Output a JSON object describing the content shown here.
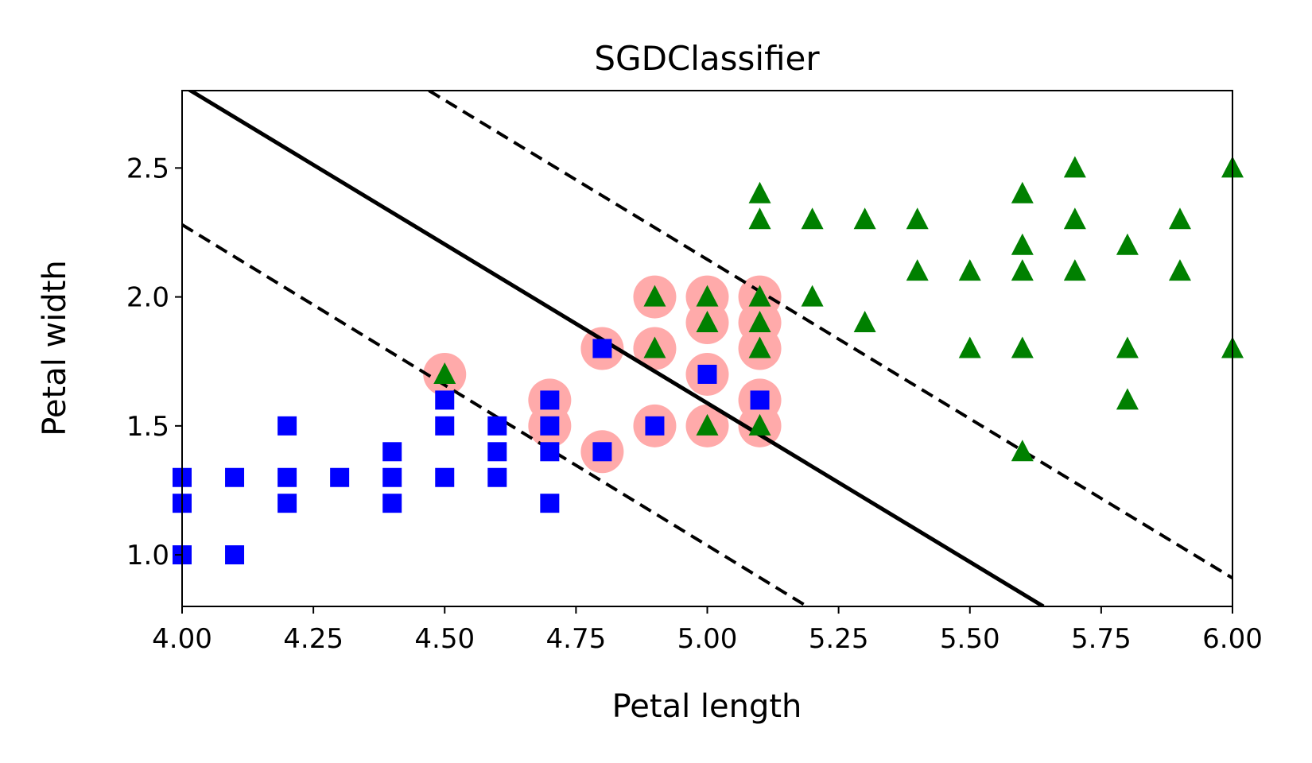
{
  "chart_data": {
    "type": "scatter",
    "title": "SGDClassifier",
    "xlabel": "Petal length",
    "ylabel": "Petal width",
    "xlim": [
      4.0,
      6.0
    ],
    "ylim": [
      0.8,
      2.8
    ],
    "x_ticks": [
      4.0,
      4.25,
      4.5,
      4.75,
      5.0,
      5.25,
      5.5,
      5.75,
      6.0
    ],
    "x_tick_labels": [
      "4.00",
      "4.25",
      "4.50",
      "4.75",
      "5.00",
      "5.25",
      "5.50",
      "5.75",
      "6.00"
    ],
    "y_ticks": [
      1.0,
      1.5,
      2.0,
      2.5
    ],
    "y_tick_labels": [
      "1.0",
      "1.5",
      "2.0",
      "2.5"
    ],
    "grid": false,
    "legend": "none",
    "colors": {
      "class_a": "#0000ff",
      "class_b": "#008000",
      "support_vectors": "#ffaaaa",
      "boundary": "#000000"
    },
    "series": [
      {
        "marker": "square",
        "color": "#0000ff",
        "points": [
          [
            4.0,
            1.0
          ],
          [
            4.0,
            1.2
          ],
          [
            4.0,
            1.3
          ],
          [
            4.1,
            1.0
          ],
          [
            4.1,
            1.3
          ],
          [
            4.2,
            1.2
          ],
          [
            4.2,
            1.3
          ],
          [
            4.2,
            1.5
          ],
          [
            4.3,
            1.3
          ],
          [
            4.4,
            1.2
          ],
          [
            4.4,
            1.3
          ],
          [
            4.4,
            1.4
          ],
          [
            4.5,
            1.3
          ],
          [
            4.5,
            1.5
          ],
          [
            4.5,
            1.6
          ],
          [
            4.6,
            1.3
          ],
          [
            4.6,
            1.4
          ],
          [
            4.6,
            1.5
          ],
          [
            4.7,
            1.2
          ],
          [
            4.7,
            1.4
          ],
          [
            4.7,
            1.5
          ],
          [
            4.7,
            1.6
          ],
          [
            4.8,
            1.4
          ],
          [
            4.8,
            1.8
          ],
          [
            4.9,
            1.5
          ],
          [
            5.0,
            1.7
          ],
          [
            5.1,
            1.6
          ]
        ]
      },
      {
        "marker": "triangle",
        "color": "#008000",
        "points": [
          [
            4.5,
            1.7
          ],
          [
            4.9,
            1.8
          ],
          [
            4.9,
            2.0
          ],
          [
            5.0,
            1.5
          ],
          [
            5.0,
            1.9
          ],
          [
            5.0,
            2.0
          ],
          [
            5.1,
            1.5
          ],
          [
            5.1,
            1.8
          ],
          [
            5.1,
            1.9
          ],
          [
            5.1,
            2.0
          ],
          [
            5.1,
            2.3
          ],
          [
            5.1,
            2.4
          ],
          [
            5.2,
            2.0
          ],
          [
            5.2,
            2.3
          ],
          [
            5.3,
            1.9
          ],
          [
            5.3,
            2.3
          ],
          [
            5.4,
            2.1
          ],
          [
            5.4,
            2.3
          ],
          [
            5.5,
            1.8
          ],
          [
            5.5,
            2.1
          ],
          [
            5.6,
            1.4
          ],
          [
            5.6,
            1.8
          ],
          [
            5.6,
            2.1
          ],
          [
            5.6,
            2.2
          ],
          [
            5.6,
            2.4
          ],
          [
            5.7,
            2.1
          ],
          [
            5.7,
            2.3
          ],
          [
            5.7,
            2.5
          ],
          [
            5.8,
            1.6
          ],
          [
            5.8,
            1.8
          ],
          [
            5.8,
            2.2
          ],
          [
            5.9,
            2.1
          ],
          [
            5.9,
            2.3
          ],
          [
            6.0,
            1.8
          ],
          [
            6.0,
            2.5
          ]
        ]
      }
    ],
    "support_vectors": [
      [
        4.5,
        1.7
      ],
      [
        4.7,
        1.5
      ],
      [
        4.7,
        1.6
      ],
      [
        4.8,
        1.4
      ],
      [
        4.8,
        1.8
      ],
      [
        4.9,
        1.5
      ],
      [
        4.9,
        1.8
      ],
      [
        4.9,
        2.0
      ],
      [
        5.0,
        1.5
      ],
      [
        5.0,
        1.7
      ],
      [
        5.0,
        1.9
      ],
      [
        5.0,
        2.0
      ],
      [
        5.1,
        1.5
      ],
      [
        5.1,
        1.6
      ],
      [
        5.1,
        1.8
      ],
      [
        5.1,
        1.9
      ],
      [
        5.1,
        2.0
      ]
    ],
    "lines": [
      {
        "style": "solid",
        "points": [
          [
            4.0,
            2.82
          ],
          [
            5.64,
            0.8
          ]
        ]
      },
      {
        "style": "dashed",
        "points": [
          [
            4.0,
            2.28
          ],
          [
            5.19,
            0.8
          ]
        ]
      },
      {
        "style": "dashed",
        "points": [
          [
            4.47,
            2.8
          ],
          [
            6.0,
            0.91
          ]
        ]
      }
    ]
  }
}
